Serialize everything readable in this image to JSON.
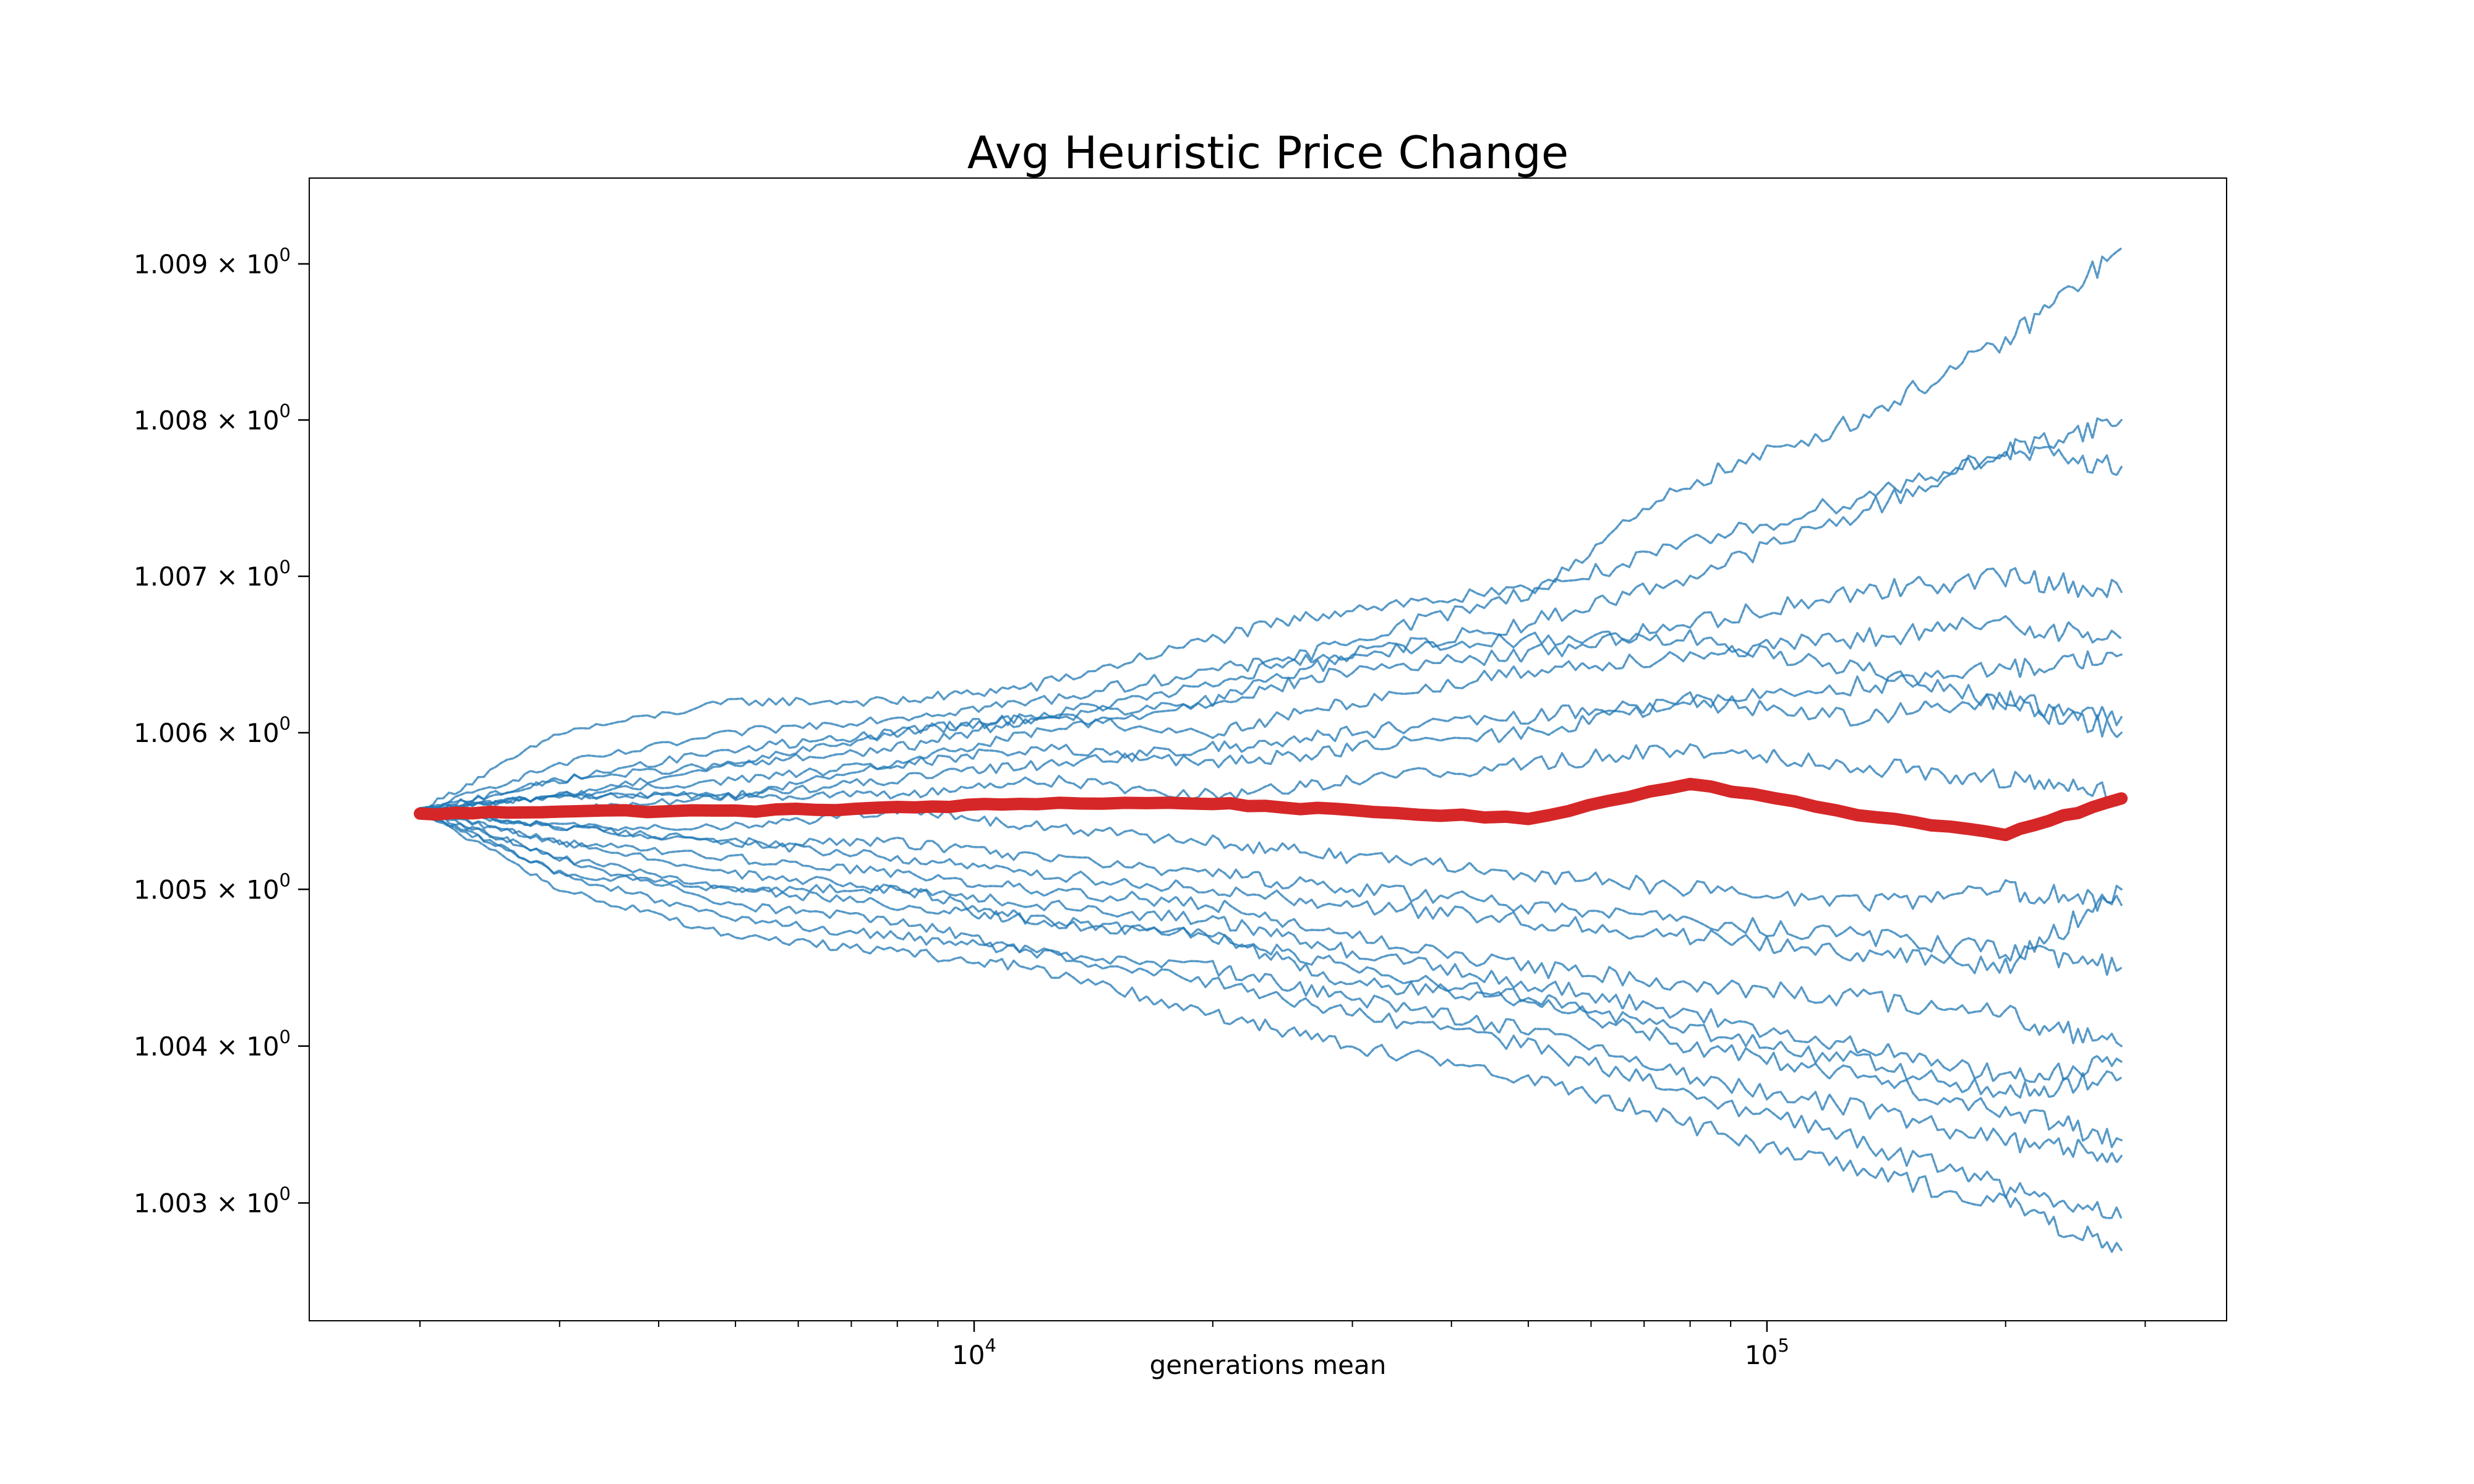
{
  "chart_data": {
    "type": "line",
    "title": "Avg Heuristic Price Change",
    "xlabel": "generations mean",
    "ylabel": "",
    "xscale": "log",
    "yscale": "log",
    "xlim": [
      1450,
      380000
    ],
    "ylim": [
      1.00225,
      1.00955
    ],
    "grid": false,
    "legend": "none",
    "x_ticks": [
      {
        "value": 10000,
        "base": "10",
        "exp": "4"
      },
      {
        "value": 100000,
        "base": "10",
        "exp": "5"
      }
    ],
    "y_ticks": [
      {
        "value": 1.003,
        "mantissa": "1.003",
        "base": "10",
        "exp": "0"
      },
      {
        "value": 1.004,
        "mantissa": "1.004",
        "base": "10",
        "exp": "0"
      },
      {
        "value": 1.005,
        "mantissa": "1.005",
        "base": "10",
        "exp": "0"
      },
      {
        "value": 1.006,
        "mantissa": "1.006",
        "base": "10",
        "exp": "0"
      },
      {
        "value": 1.007,
        "mantissa": "1.007",
        "base": "10",
        "exp": "0"
      },
      {
        "value": 1.008,
        "mantissa": "1.008",
        "base": "10",
        "exp": "0"
      },
      {
        "value": 1.009,
        "mantissa": "1.009",
        "base": "10",
        "exp": "0"
      }
    ],
    "x": [
      2000,
      3000,
      5000,
      8000,
      12000,
      20000,
      30000,
      50000,
      80000,
      130000,
      200000,
      280000
    ],
    "series": [
      {
        "color": "#d62728",
        "values": [
          1.00548,
          1.0055,
          1.0055,
          1.00552,
          1.00555,
          1.00555,
          1.0055,
          1.00545,
          1.00568,
          1.00548,
          1.00535,
          1.00558
        ]
      },
      {
        "color": "#1f77b4",
        "values": [
          1.0055,
          1.006,
          1.0062,
          1.0062,
          1.0063,
          1.0066,
          1.0068,
          1.0069,
          1.0076,
          1.008,
          1.0085,
          1.0091
        ]
      },
      {
        "color": "#1f77b4",
        "values": [
          1.0055,
          1.0058,
          1.006,
          1.0061,
          1.0062,
          1.0064,
          1.0065,
          1.0067,
          1.007,
          1.0074,
          1.0078,
          1.008
        ]
      },
      {
        "color": "#1f77b4",
        "values": [
          1.0055,
          1.0057,
          1.0058,
          1.006,
          1.0061,
          1.0063,
          1.0066,
          1.0069,
          1.0072,
          1.0075,
          1.0078,
          1.0077
        ]
      },
      {
        "color": "#1f77b4",
        "values": [
          1.0055,
          1.0056,
          1.0057,
          1.0058,
          1.006,
          1.0062,
          1.0064,
          1.0065,
          1.0067,
          1.0069,
          1.007,
          1.0069
        ]
      },
      {
        "color": "#1f77b4",
        "values": [
          1.0055,
          1.0056,
          1.0058,
          1.0059,
          1.0061,
          1.006,
          1.0062,
          1.0064,
          1.0065,
          1.0066,
          1.0067,
          1.0066
        ]
      },
      {
        "color": "#1f77b4",
        "values": [
          1.0055,
          1.0056,
          1.0056,
          1.0057,
          1.0058,
          1.0059,
          1.006,
          1.0061,
          1.0062,
          1.0063,
          1.0064,
          1.0065
        ]
      },
      {
        "color": "#1f77b4",
        "values": [
          1.0055,
          1.0056,
          1.0056,
          1.0058,
          1.0059,
          1.0058,
          1.0059,
          1.006,
          1.0062,
          1.0061,
          1.0062,
          1.006
        ]
      },
      {
        "color": "#1f77b4",
        "values": [
          1.0055,
          1.0055,
          1.0056,
          1.0056,
          1.0057,
          1.0056,
          1.0057,
          1.0058,
          1.0059,
          1.0058,
          1.0057,
          1.0056
        ]
      },
      {
        "color": "#1f77b4",
        "values": [
          1.0055,
          1.0054,
          1.0053,
          1.0052,
          1.0051,
          1.005,
          1.0049,
          1.0048,
          1.0047,
          1.0046,
          1.0045,
          1.005
        ]
      },
      {
        "color": "#1f77b4",
        "values": [
          1.0055,
          1.0053,
          1.0052,
          1.0051,
          1.005,
          1.0049,
          1.0047,
          1.0045,
          1.0044,
          1.0043,
          1.0042,
          1.004
        ]
      },
      {
        "color": "#1f77b4",
        "values": [
          1.0055,
          1.0052,
          1.005,
          1.0049,
          1.0048,
          1.0047,
          1.0045,
          1.0043,
          1.0041,
          1.0039,
          1.0037,
          1.0038
        ]
      },
      {
        "color": "#1f77b4",
        "values": [
          1.0055,
          1.0052,
          1.0049,
          1.0048,
          1.0046,
          1.0045,
          1.0043,
          1.0041,
          1.0038,
          1.0036,
          1.0034,
          1.0033
        ]
      },
      {
        "color": "#1f77b4",
        "values": [
          1.0055,
          1.0051,
          1.0048,
          1.0047,
          1.0046,
          1.0044,
          1.0042,
          1.004,
          1.0037,
          1.0034,
          1.0031,
          1.0029
        ]
      },
      {
        "color": "#1f77b4",
        "values": [
          1.0055,
          1.005,
          1.0047,
          1.0046,
          1.0045,
          1.0042,
          1.004,
          1.0038,
          1.0035,
          1.0032,
          1.003,
          1.0027
        ]
      },
      {
        "color": "#1f77b4",
        "values": [
          1.0055,
          1.0051,
          1.005,
          1.005,
          1.0048,
          1.0047,
          1.0044,
          1.0043,
          1.004,
          1.0038,
          1.0036,
          1.0034
        ]
      },
      {
        "color": "#1f77b4",
        "values": [
          1.0055,
          1.0054,
          1.0053,
          1.0053,
          1.0052,
          1.0051,
          1.005,
          1.0049,
          1.0048,
          1.0047,
          1.0046,
          1.0045
        ]
      },
      {
        "color": "#1f77b4",
        "values": [
          1.0055,
          1.0057,
          1.0059,
          1.006,
          1.0061,
          1.0062,
          1.0065,
          1.0066,
          1.0066,
          1.0064,
          1.0062,
          1.0061
        ]
      },
      {
        "color": "#1f77b4",
        "values": [
          1.0055,
          1.0054,
          1.0054,
          1.0055,
          1.0054,
          1.0053,
          1.0052,
          1.0051,
          1.005,
          1.0049,
          1.005,
          1.0049
        ]
      },
      {
        "color": "#1f77b4",
        "values": [
          1.0055,
          1.0053,
          1.0051,
          1.005,
          1.0049,
          1.0048,
          1.0046,
          1.0044,
          1.0042,
          1.004,
          1.0038,
          1.0039
        ]
      }
    ]
  }
}
